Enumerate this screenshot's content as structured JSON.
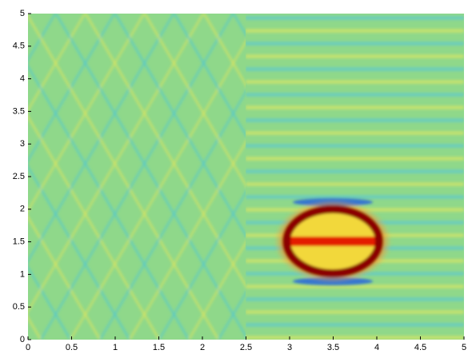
{
  "chart_data": {
    "type": "heatmap",
    "xlim": [
      0,
      5
    ],
    "ylim": [
      0,
      5
    ],
    "xticks": [
      0,
      0.5,
      1,
      1.5,
      2,
      2.5,
      3,
      3.5,
      4,
      4.5,
      5
    ],
    "yticks": [
      0,
      0.5,
      1,
      1.5,
      2,
      2.5,
      3,
      3.5,
      4,
      4.5,
      5
    ]
  }
}
